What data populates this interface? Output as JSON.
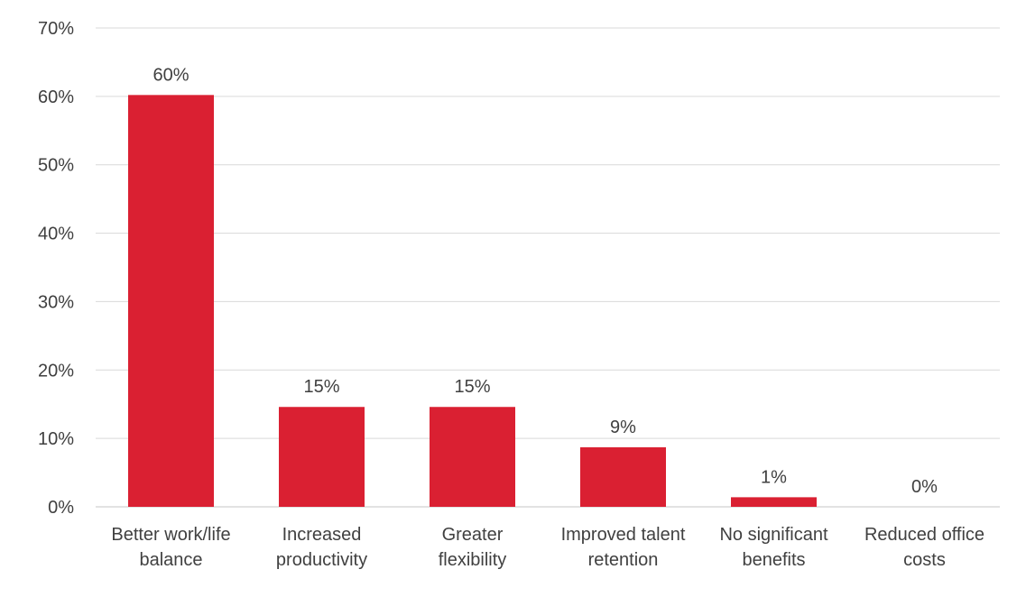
{
  "chart_data": {
    "type": "bar",
    "categories": [
      [
        "Better work/life",
        "balance"
      ],
      [
        "Increased",
        "productivity"
      ],
      [
        "Greater",
        "flexibility"
      ],
      [
        "Improved talent",
        "retention"
      ],
      [
        "No significant",
        "benefits"
      ],
      [
        "Reduced office",
        "costs"
      ]
    ],
    "values": [
      60.2,
      14.6,
      14.6,
      8.7,
      1.4,
      0
    ],
    "data_labels": [
      "60%",
      "15%",
      "15%",
      "9%",
      "1%",
      "0%"
    ],
    "y_ticks": [
      "0%",
      "10%",
      "20%",
      "30%",
      "40%",
      "50%",
      "60%",
      "70%"
    ],
    "ylim": [
      0,
      70
    ],
    "grid": true,
    "legend": "none",
    "title": "",
    "xlabel": "",
    "ylabel": "",
    "bar_color": "#DA2032",
    "grid_color": "#D9D9D9"
  }
}
